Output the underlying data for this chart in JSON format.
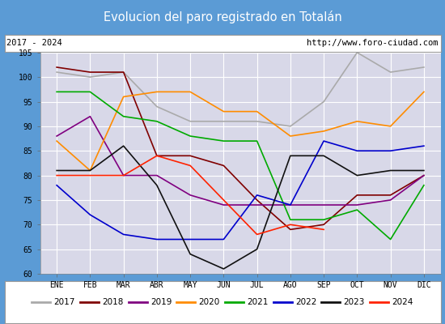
{
  "title": "Evolucion del paro registrado en Totalán",
  "title_bg": "#5b9bd5",
  "subtitle_left": "2017 - 2024",
  "subtitle_right": "http://www.foro-ciudad.com",
  "months": [
    "ENE",
    "FEB",
    "MAR",
    "ABR",
    "MAY",
    "JUN",
    "JUL",
    "AGO",
    "SEP",
    "OCT",
    "NOV",
    "DIC"
  ],
  "ylim": [
    60,
    105
  ],
  "yticks": [
    60,
    65,
    70,
    75,
    80,
    85,
    90,
    95,
    100,
    105
  ],
  "series": {
    "2017": {
      "color": "#aaaaaa",
      "data": [
        101,
        100,
        101,
        94,
        91,
        91,
        91,
        90,
        95,
        105,
        101,
        102
      ]
    },
    "2018": {
      "color": "#800000",
      "data": [
        102,
        101,
        101,
        84,
        84,
        82,
        75,
        69,
        70,
        76,
        76,
        80
      ]
    },
    "2019": {
      "color": "#800080",
      "data": [
        88,
        92,
        80,
        80,
        76,
        74,
        74,
        74,
        74,
        74,
        75,
        80
      ]
    },
    "2020": {
      "color": "#ff8c00",
      "data": [
        87,
        81,
        96,
        97,
        97,
        93,
        93,
        88,
        89,
        91,
        90,
        97
      ]
    },
    "2021": {
      "color": "#00aa00",
      "data": [
        97,
        97,
        92,
        91,
        88,
        87,
        87,
        71,
        71,
        73,
        67,
        78
      ]
    },
    "2022": {
      "color": "#0000cc",
      "data": [
        78,
        72,
        68,
        67,
        67,
        67,
        76,
        74,
        87,
        85,
        85,
        86
      ]
    },
    "2023": {
      "color": "#111111",
      "data": [
        81,
        81,
        86,
        78,
        64,
        61,
        65,
        84,
        84,
        80,
        81,
        81
      ]
    },
    "2024": {
      "color": "#ff2200",
      "data": [
        80,
        80,
        80,
        84,
        82,
        75,
        68,
        70,
        69,
        null,
        null,
        null
      ]
    }
  },
  "bg_plot": "#d8d8e8",
  "grid_color": "#ffffff",
  "outer_bg": "#5b9bd5",
  "fig_width": 5.5,
  "fig_height": 4.0,
  "dpi": 100
}
